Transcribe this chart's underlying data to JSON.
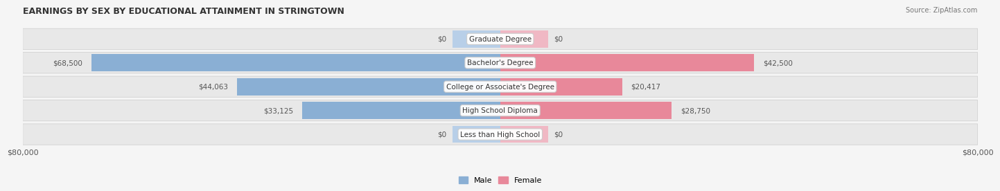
{
  "title": "EARNINGS BY SEX BY EDUCATIONAL ATTAINMENT IN STRINGTOWN",
  "source": "Source: ZipAtlas.com",
  "categories": [
    "Less than High School",
    "High School Diploma",
    "College or Associate's Degree",
    "Bachelor's Degree",
    "Graduate Degree"
  ],
  "male_values": [
    0,
    33125,
    44063,
    68500,
    0
  ],
  "female_values": [
    0,
    28750,
    20417,
    42500,
    0
  ],
  "male_color": "#8aafd4",
  "female_color": "#e8889a",
  "male_color_light": "#b8cfe8",
  "female_color_light": "#f0b8c4",
  "max_value": 80000,
  "background_color": "#f0f0f0",
  "row_bg_color": "#e8e8e8",
  "label_color": "#555555",
  "title_color": "#333333",
  "axis_label": "$80,000",
  "figsize": [
    14.06,
    2.69
  ],
  "dpi": 100
}
